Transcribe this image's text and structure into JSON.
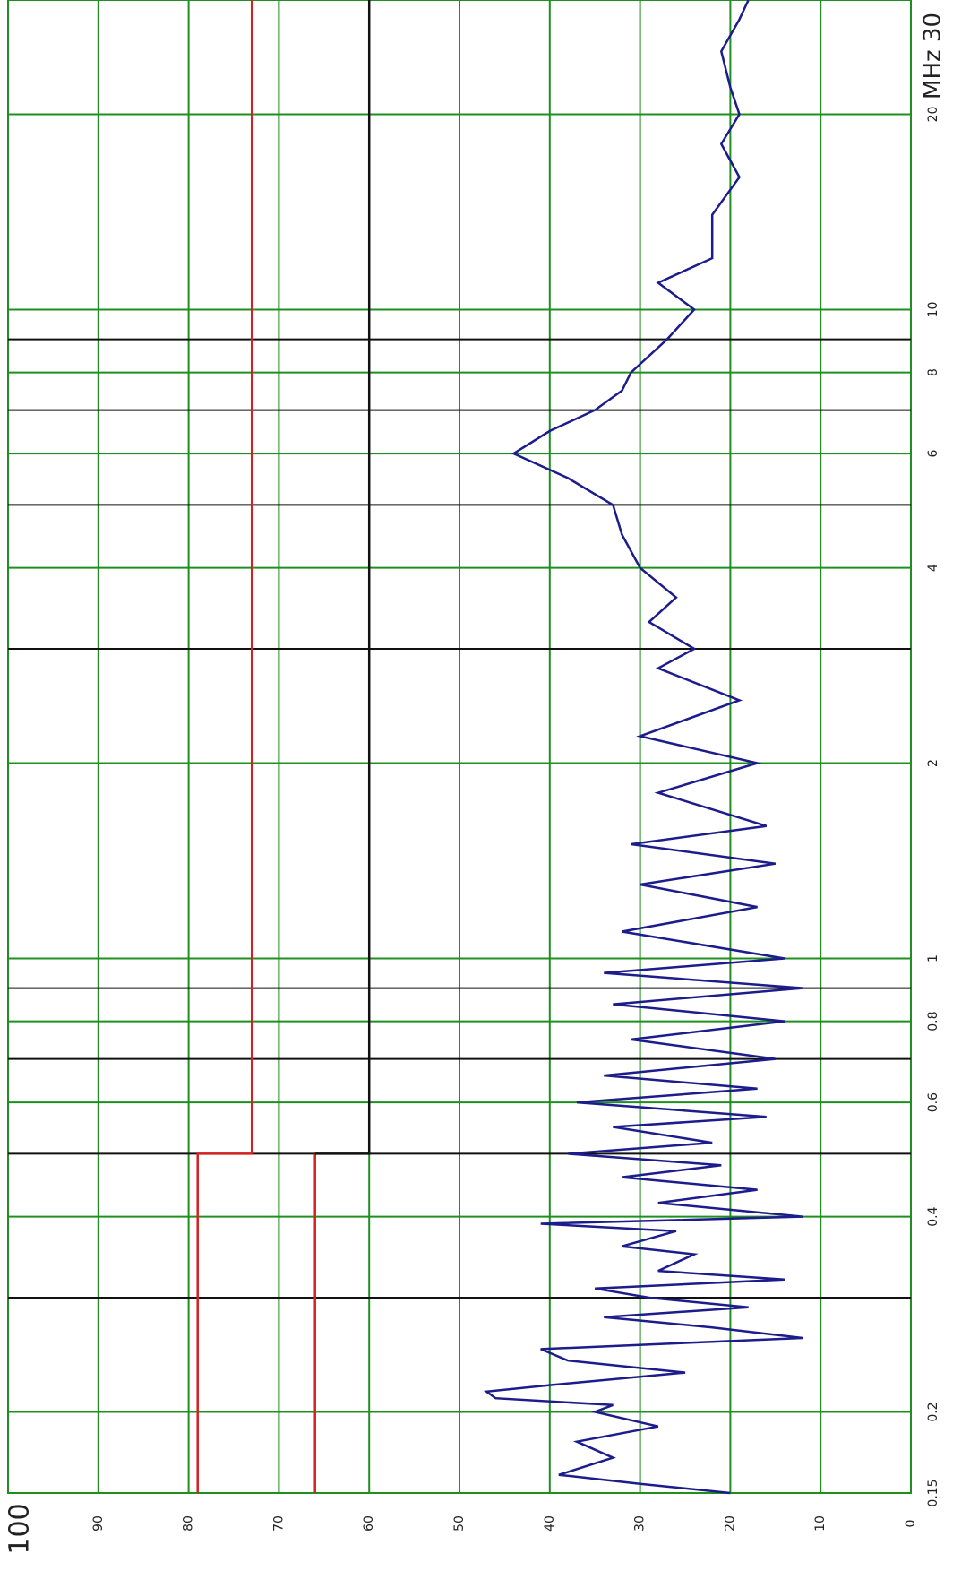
{
  "chart_data": {
    "type": "line",
    "xscale": "log",
    "xlim": [
      0.15,
      30
    ],
    "ylim": [
      0,
      100
    ],
    "xticks": [
      0.15,
      0.2,
      0.4,
      0.6,
      0.8,
      1,
      2,
      4,
      6,
      8,
      10,
      20,
      {
        "value": 30,
        "label": "MHz 30"
      }
    ],
    "xminor": [
      0.3,
      0.5,
      0.7,
      0.9,
      3,
      5,
      7,
      9
    ],
    "yticks": [
      0,
      10,
      20,
      30,
      40,
      50,
      60,
      70,
      80,
      90,
      100
    ],
    "grid": true,
    "grid_color": "#1f8f1f",
    "series": [
      {
        "color": "#1c1c8c",
        "x": [
          0.15,
          0.155,
          0.16,
          0.17,
          0.18,
          0.19,
          0.2,
          0.205,
          0.21,
          0.215,
          0.22,
          0.23,
          0.24,
          0.25,
          0.26,
          0.27,
          0.28,
          0.29,
          0.3,
          0.31,
          0.32,
          0.33,
          0.35,
          0.36,
          0.38,
          0.39,
          0.4,
          0.42,
          0.44,
          0.46,
          0.48,
          0.5,
          0.52,
          0.55,
          0.57,
          0.6,
          0.63,
          0.66,
          0.7,
          0.75,
          0.8,
          0.85,
          0.9,
          0.95,
          1,
          1.1,
          1.2,
          1.3,
          1.4,
          1.5,
          1.6,
          1.8,
          2,
          2.2,
          2.5,
          2.8,
          3,
          3.3,
          3.6,
          4,
          4.5,
          5,
          5.5,
          6,
          6.5,
          7,
          7.5,
          8,
          9,
          10,
          11,
          12,
          14,
          16,
          18,
          20,
          22,
          25,
          28,
          30
        ],
        "values": [
          20,
          30,
          39,
          33,
          37,
          28,
          35,
          33,
          46,
          47,
          40,
          25,
          38,
          41,
          12,
          22,
          34,
          18,
          29,
          35,
          14,
          28,
          24,
          32,
          26,
          41,
          12,
          28,
          17,
          32,
          21,
          38,
          22,
          33,
          16,
          37,
          17,
          34,
          15,
          31,
          14,
          33,
          12,
          34,
          14,
          32,
          17,
          30,
          15,
          31,
          16,
          28,
          17,
          30,
          19,
          28,
          24,
          29,
          26,
          30,
          32,
          33,
          38,
          44,
          40,
          35,
          32,
          31,
          27,
          24,
          28,
          22,
          22,
          19,
          21,
          19,
          20,
          21,
          19,
          18
        ]
      },
      {
        "color": "#d42020",
        "x": [
          0.15,
          0.5,
          0.5,
          30
        ],
        "values": [
          79,
          79,
          73,
          73
        ]
      },
      {
        "color": "#d42020",
        "x": [
          0.15,
          0.5
        ],
        "values": [
          66,
          66
        ]
      },
      {
        "color": "#111111",
        "x": [
          0.5,
          0.5,
          30
        ],
        "values": [
          66,
          60,
          60
        ]
      }
    ]
  }
}
